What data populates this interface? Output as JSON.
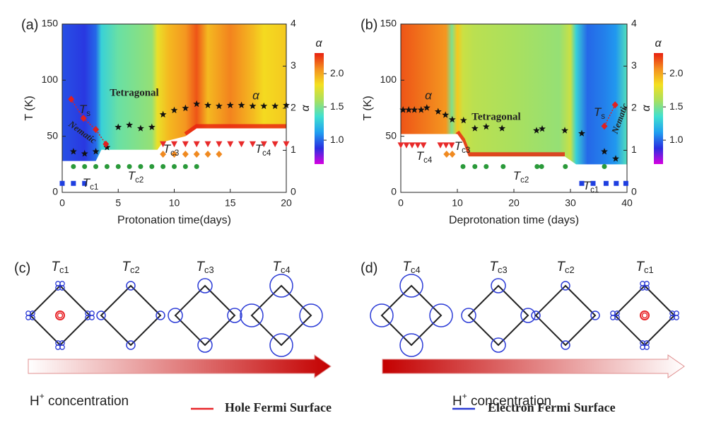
{
  "chart_data": [
    {
      "type": "scatter",
      "panel_label": "(a)",
      "xlabel": "Protonation time(days)",
      "ylabel": "T (K)",
      "y2label": "α",
      "xlim": [
        0,
        20
      ],
      "xticks": [
        0,
        5,
        10,
        15,
        20
      ],
      "ylim": [
        0,
        150
      ],
      "yticks": [
        0,
        50,
        100,
        150
      ],
      "y2lim": [
        0,
        4
      ],
      "y2ticks": [
        0,
        1,
        2,
        3,
        4
      ],
      "colorbar": {
        "label": "α",
        "lim": [
          0.64,
          2.31
        ],
        "ticks": [
          {
            "value": 1,
            "label": "1.0"
          },
          {
            "value": 1.5,
            "label": "1.5"
          },
          {
            "value": 2,
            "label": "2.0"
          }
        ],
        "colors": [
          "#d800e0",
          "#2a2ee0",
          "#20a0f0",
          "#40e0d0",
          "#a8e060",
          "#f4e020",
          "#f49020",
          "#e82010"
        ]
      },
      "annotations": [
        "Tetragonal",
        "Nematic"
      ],
      "series": [
        {
          "name": "α",
          "color": "#111111",
          "marker": "star",
          "axis": "y2",
          "x": [
            1,
            2,
            3,
            4,
            5,
            6,
            7,
            8,
            9,
            10,
            11,
            12,
            13,
            14,
            15,
            16,
            17,
            18,
            19,
            20
          ],
          "values": [
            0.97,
            0.92,
            0.97,
            1.07,
            1.55,
            1.6,
            1.52,
            1.55,
            1.85,
            1.95,
            2.0,
            2.1,
            2.07,
            2.05,
            2.07,
            2.07,
            2.05,
            2.05,
            2.05,
            2.07
          ]
        },
        {
          "name": {
            "symbol": "T",
            "subscript": "s"
          },
          "color": "#e02020",
          "marker": "diamond",
          "line": "dotted",
          "x": [
            0.8,
            1.9,
            3,
            3.9
          ],
          "values": [
            83,
            66,
            56,
            43
          ]
        },
        {
          "name": {
            "symbol": "T",
            "subscript": "c4"
          },
          "color": "#e82a2a",
          "marker": "triangle",
          "x": [
            9,
            10,
            11,
            12,
            13,
            14,
            15,
            16,
            17,
            18,
            19,
            20
          ],
          "values": [
            43,
            43,
            43,
            43,
            43,
            43,
            43,
            43,
            43,
            43,
            43,
            43
          ]
        },
        {
          "name": {
            "symbol": "T",
            "subscript": "c3"
          },
          "color": "#f08a20",
          "marker": "diamond",
          "x": [
            9,
            10,
            11,
            12,
            13,
            14
          ],
          "values": [
            34,
            34,
            34,
            34,
            34,
            34
          ]
        },
        {
          "name": {
            "symbol": "T",
            "subscript": "c2"
          },
          "color": "#2a9a3a",
          "marker": "circle",
          "x": [
            1,
            2,
            3,
            4,
            5,
            6,
            7,
            8,
            9,
            10,
            11,
            12
          ],
          "values": [
            23,
            23,
            23,
            23,
            23,
            23,
            23,
            23,
            23,
            23,
            23,
            23
          ]
        },
        {
          "name": {
            "symbol": "T",
            "subscript": "c1"
          },
          "color": "#1f3fe0",
          "marker": "square",
          "x": [
            0,
            1,
            2
          ],
          "values": [
            8,
            8,
            8
          ]
        }
      ]
    },
    {
      "type": "scatter",
      "panel_label": "(b)",
      "xlabel": "Deprotonation time (days)",
      "ylabel": "T (K)",
      "y2label": "α",
      "xlim": [
        0,
        40
      ],
      "xticks": [
        0,
        10,
        20,
        30,
        40
      ],
      "ylim": [
        0,
        150
      ],
      "yticks": [
        0,
        50,
        100,
        150
      ],
      "y2lim": [
        0,
        4
      ],
      "y2ticks": [
        0,
        1,
        2,
        3,
        4
      ],
      "colorbar": {
        "label": "α",
        "lim": [
          0.64,
          2.31
        ],
        "ticks": [
          {
            "value": 1,
            "label": "1.0"
          },
          {
            "value": 1.5,
            "label": "1.5"
          },
          {
            "value": 2,
            "label": "2.0"
          }
        ],
        "colors": [
          "#d800e0",
          "#2a2ee0",
          "#20a0f0",
          "#40e0d0",
          "#a8e060",
          "#f4e020",
          "#f49020",
          "#e82010"
        ]
      },
      "annotations": [
        "Tetragonal",
        "Nematic"
      ],
      "series": [
        {
          "name": "α",
          "color": "#111111",
          "marker": "star",
          "axis": "y2",
          "x": [
            0.4,
            1.4,
            2.4,
            3.6,
            4.6,
            6.6,
            7.9,
            9.1,
            11.1,
            13.1,
            15.1,
            17.9,
            24,
            25,
            29,
            32,
            36,
            38
          ],
          "values": [
            1.96,
            1.96,
            1.96,
            1.96,
            2.01,
            1.92,
            1.84,
            1.73,
            1.71,
            1.52,
            1.56,
            1.52,
            1.47,
            1.51,
            1.47,
            1.4,
            0.97,
            0.8
          ]
        },
        {
          "name": {
            "symbol": "T",
            "subscript": "s"
          },
          "color": "#e02020",
          "marker": "diamond",
          "line": "dotted",
          "x": [
            36,
            37.9
          ],
          "values": [
            59,
            78
          ]
        },
        {
          "name": {
            "symbol": "T",
            "subscript": "c4"
          },
          "color": "#e82a2a",
          "marker": "triangle",
          "x": [
            0,
            1,
            2,
            3,
            4,
            7,
            8,
            9
          ],
          "values": [
            42,
            42,
            42,
            42,
            42,
            42,
            42,
            42
          ]
        },
        {
          "name": {
            "symbol": "T",
            "subscript": "c3"
          },
          "color": "#f08a20",
          "marker": "diamond",
          "x": [
            8.1,
            9.1
          ],
          "values": [
            34,
            34
          ]
        },
        {
          "name": {
            "symbol": "T",
            "subscript": "c2"
          },
          "color": "#2a9a3a",
          "marker": "circle",
          "x": [
            11,
            13.1,
            15.1,
            18.1,
            24.1,
            24.9,
            29.1,
            36
          ],
          "values": [
            23,
            23,
            23,
            23,
            23,
            23,
            23,
            23
          ]
        },
        {
          "name": {
            "symbol": "T",
            "subscript": "c1"
          },
          "color": "#1f3fe0",
          "marker": "square",
          "x": [
            32,
            34,
            36.3,
            38.1,
            39.8
          ],
          "values": [
            8,
            8,
            8,
            8,
            8
          ]
        }
      ]
    }
  ],
  "diagrams": [
    {
      "panel_label": "(c)",
      "items": [
        {
          "symbol": "T",
          "subscript": "c1"
        },
        {
          "symbol": "T",
          "subscript": "c2"
        },
        {
          "symbol": "T",
          "subscript": "c3"
        },
        {
          "symbol": "T",
          "subscript": "c4"
        }
      ],
      "arrow_label": {
        "base": "H",
        "sup": "+",
        "rest": " concentration"
      }
    },
    {
      "panel_label": "(d)",
      "items": [
        {
          "symbol": "T",
          "subscript": "c4"
        },
        {
          "symbol": "T",
          "subscript": "c3"
        },
        {
          "symbol": "T",
          "subscript": "c2"
        },
        {
          "symbol": "T",
          "subscript": "c1"
        }
      ],
      "arrow_label": {
        "base": "H",
        "sup": "+",
        "rest": " concentration"
      }
    }
  ],
  "legend": [
    {
      "label": "Hole Fermi Surface",
      "color": "#e8262a"
    },
    {
      "label": "Electron Fermi Surface",
      "color": "#2b3bd6"
    }
  ]
}
